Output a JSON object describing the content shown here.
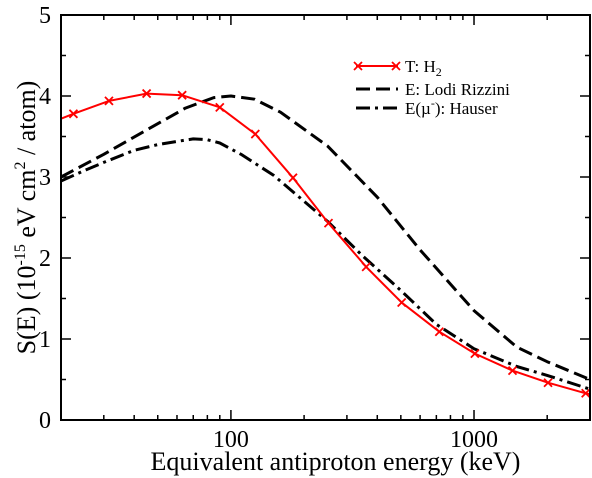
{
  "chart_data": {
    "type": "line",
    "xlabel": "Equivalent antiproton energy (keV)",
    "ylabel": {
      "prefix": "S(E)  (10",
      "exp1": "-15",
      "mid": " eV cm",
      "exp2": "2",
      "suffix": " / atom)"
    },
    "xscale": "log",
    "xlim": [
      20,
      3000
    ],
    "ylim": [
      0,
      5
    ],
    "x_ticks": [
      {
        "value": 100,
        "label": "100"
      },
      {
        "value": 1000,
        "label": "1000"
      }
    ],
    "y_ticks": [
      {
        "value": 0,
        "label": "0"
      },
      {
        "value": 1,
        "label": "1"
      },
      {
        "value": 2,
        "label": "2"
      },
      {
        "value": 3,
        "label": "3"
      },
      {
        "value": 4,
        "label": "4"
      },
      {
        "value": 5,
        "label": "5"
      }
    ],
    "grid": false,
    "legend_position": "top-right",
    "series": [
      {
        "key": "theory-h2",
        "label_main": "T: H",
        "label_sub": "2",
        "color": "#ff0000",
        "style": "solid-with-x-markers",
        "x": [
          20,
          22.5,
          31.5,
          45,
          63,
          90,
          126,
          180,
          252,
          360,
          504,
          720,
          1008,
          1440,
          2016,
          2880,
          3000
        ],
        "y": [
          3.72,
          3.78,
          3.94,
          4.03,
          4.01,
          3.86,
          3.53,
          2.99,
          2.43,
          1.89,
          1.45,
          1.09,
          0.82,
          0.61,
          0.46,
          0.33,
          0.32
        ],
        "markers_x": [
          22.5,
          31.5,
          45,
          63,
          90,
          126,
          180,
          252,
          360,
          504,
          720,
          1008,
          1440,
          2016,
          2880
        ],
        "markers_y": [
          3.78,
          3.94,
          4.03,
          4.01,
          3.86,
          3.53,
          2.99,
          2.43,
          1.89,
          1.45,
          1.09,
          0.82,
          0.61,
          0.46,
          0.33
        ]
      },
      {
        "key": "experiment-lodi-rizzini",
        "label_main": "E: Lodi Rizzini",
        "color": "#000000",
        "style": "dashed",
        "x": [
          20,
          30,
          45,
          65,
          85,
          100,
          125,
          160,
          250,
          400,
          600,
          1000,
          1500,
          2000,
          3000
        ],
        "y": [
          3.0,
          3.28,
          3.58,
          3.85,
          3.98,
          4.0,
          3.96,
          3.8,
          3.38,
          2.75,
          2.1,
          1.35,
          0.9,
          0.72,
          0.5
        ]
      },
      {
        "key": "experiment-hauser",
        "label_main": "E(µ",
        "label_sup": "-",
        "label_tail": "): Hauser",
        "color": "#000000",
        "style": "dash-dot",
        "x": [
          20,
          25,
          30,
          40,
          50,
          60,
          70,
          80,
          90,
          110,
          150,
          200,
          250,
          350,
          500,
          700,
          1000,
          1500,
          2000,
          3000
        ],
        "y": [
          2.95,
          3.08,
          3.18,
          3.33,
          3.4,
          3.44,
          3.47,
          3.46,
          3.42,
          3.28,
          3.02,
          2.7,
          2.45,
          2.02,
          1.6,
          1.18,
          0.88,
          0.66,
          0.55,
          0.38
        ]
      }
    ]
  }
}
